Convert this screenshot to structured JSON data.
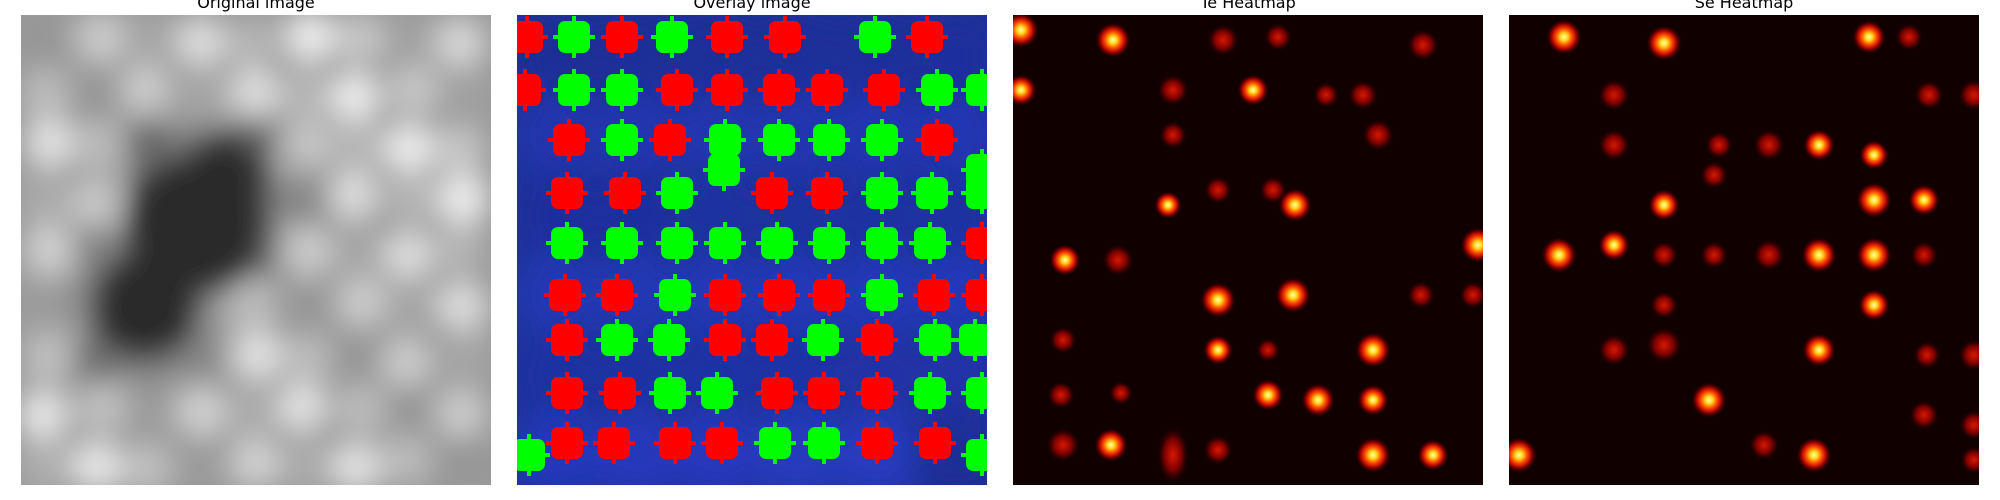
{
  "figure": {
    "panels": [
      {
        "title": "Original image",
        "kind": "grayscale"
      },
      {
        "title": "Overlay image",
        "kind": "overlay"
      },
      {
        "title": "Te Heatmap",
        "kind": "heatmap"
      },
      {
        "title": "Se Heatmap",
        "kind": "heatmap"
      }
    ]
  },
  "colors": {
    "overlay_background": "#1a2a8c",
    "marker_se": "#00ff00",
    "marker_te": "#ff0000",
    "heatmap_background": "#0d0000",
    "heatmap_peak": "#ffff99"
  }
}
